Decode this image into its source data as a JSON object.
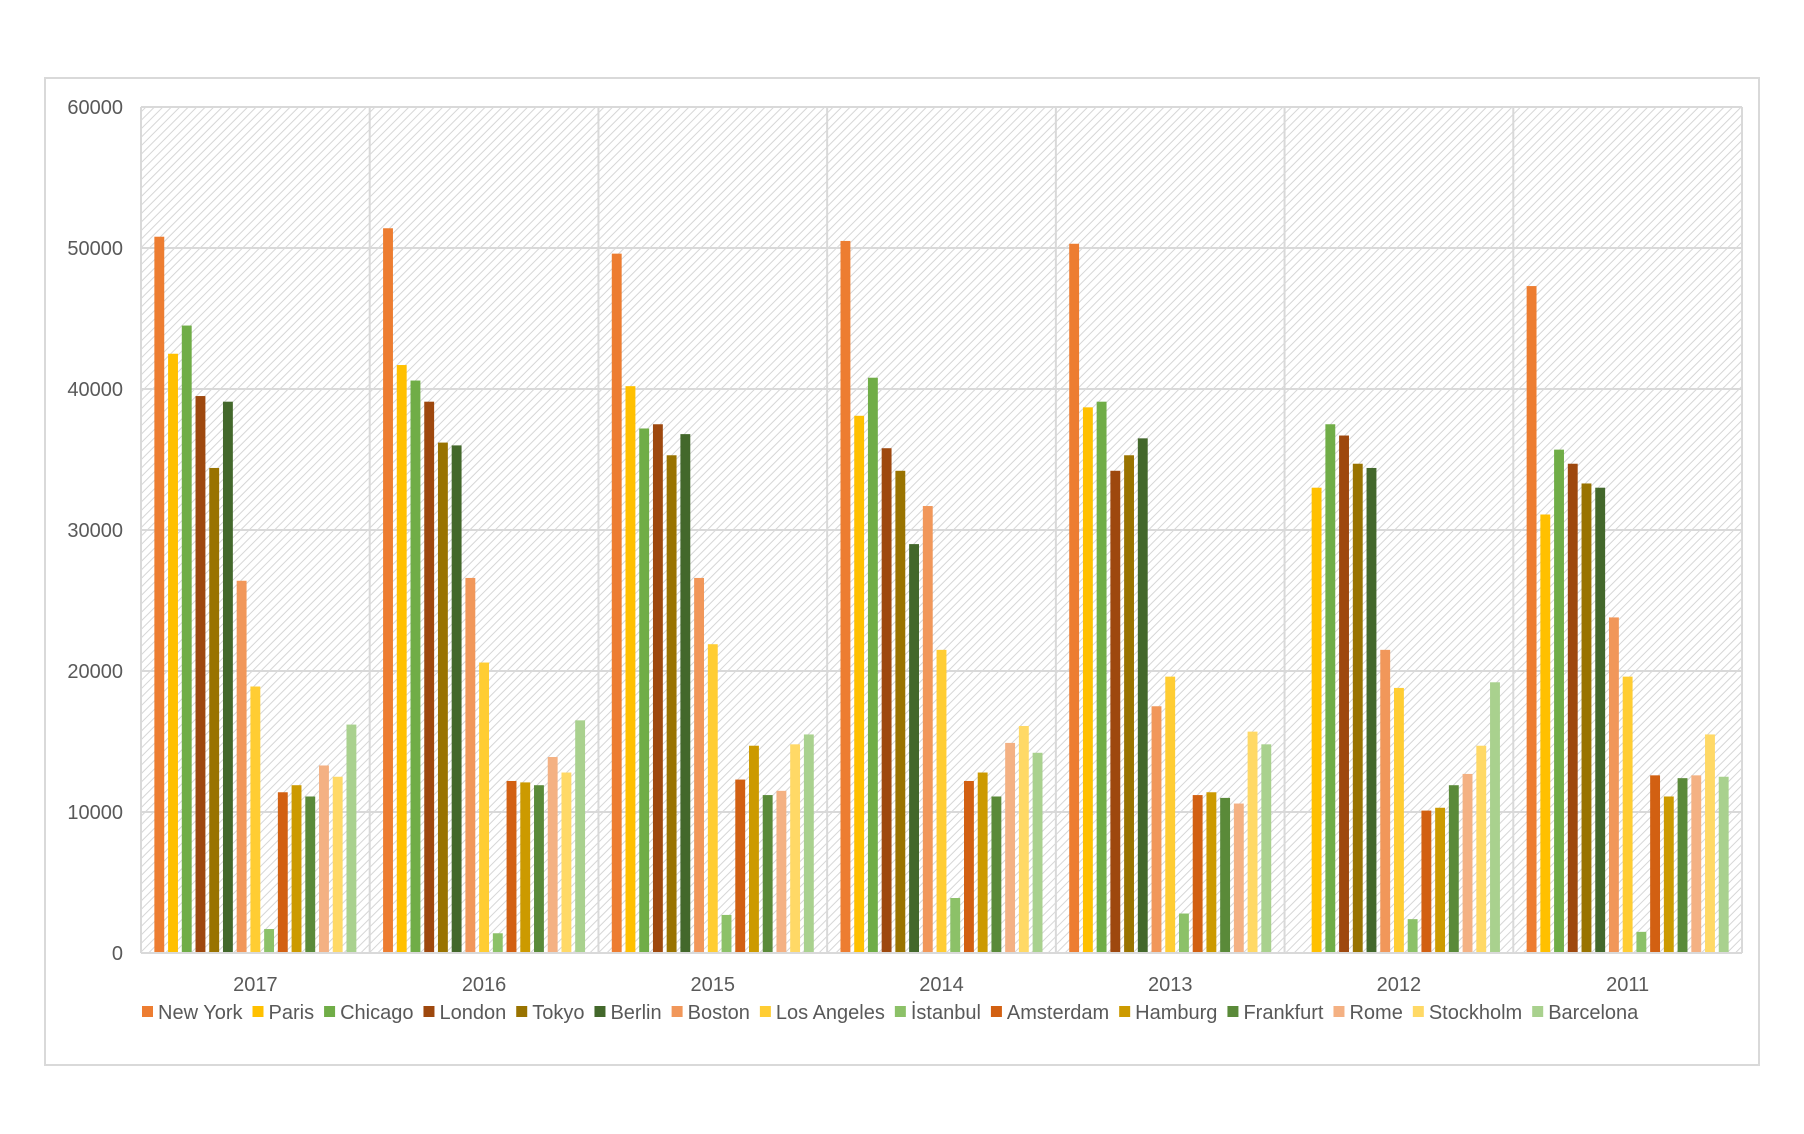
{
  "chart_data": {
    "type": "bar",
    "title": "",
    "xlabel": "",
    "ylabel": "",
    "ylim": [
      0,
      60000
    ],
    "yticks": [
      0,
      10000,
      20000,
      30000,
      40000,
      50000,
      60000
    ],
    "grid": true,
    "legend_position": "bottom",
    "categories": [
      "2017",
      "2016",
      "2015",
      "2014",
      "2013",
      "2012",
      "2011"
    ],
    "series": [
      {
        "name": "New York",
        "color": "#ed7d31",
        "values": [
          50800,
          51400,
          49600,
          50500,
          50300,
          0,
          47300
        ]
      },
      {
        "name": "Paris",
        "color": "#ffc000",
        "values": [
          42500,
          41700,
          40200,
          38100,
          38700,
          33000,
          31100
        ]
      },
      {
        "name": "Chicago",
        "color": "#70ad47",
        "values": [
          44500,
          40600,
          37200,
          40800,
          39100,
          37500,
          35700
        ]
      },
      {
        "name": "London",
        "color": "#9e480e",
        "values": [
          39500,
          39100,
          37500,
          35800,
          34200,
          36700,
          34700
        ]
      },
      {
        "name": "Tokyo",
        "color": "#997300",
        "values": [
          34400,
          36200,
          35300,
          34200,
          35300,
          34700,
          33300
        ]
      },
      {
        "name": "Berlin",
        "color": "#43682b",
        "values": [
          39100,
          36000,
          36800,
          29000,
          36500,
          34400,
          33000
        ]
      },
      {
        "name": "Boston",
        "color": "#f1975a",
        "values": [
          26400,
          26600,
          26600,
          31700,
          17500,
          21500,
          23800
        ]
      },
      {
        "name": "Los Angeles",
        "color": "#ffcd33",
        "values": [
          18900,
          20600,
          21900,
          21500,
          19600,
          18800,
          19600
        ]
      },
      {
        "name": "İstanbul",
        "color": "#8cc168",
        "values": [
          1700,
          1400,
          2700,
          3900,
          2800,
          2400,
          1500
        ]
      },
      {
        "name": "Amsterdam",
        "color": "#d26012",
        "values": [
          11400,
          12200,
          12300,
          12200,
          11200,
          10100,
          12600
        ]
      },
      {
        "name": "Hamburg",
        "color": "#cc9a00",
        "values": [
          11900,
          12100,
          14700,
          12800,
          11400,
          10300,
          11100
        ]
      },
      {
        "name": "Frankfurt",
        "color": "#5a8a39",
        "values": [
          11100,
          11900,
          11200,
          11100,
          11000,
          11900,
          12400
        ]
      },
      {
        "name": "Rome",
        "color": "#f4b183",
        "values": [
          13300,
          13900,
          11500,
          14900,
          10600,
          12700,
          12600
        ]
      },
      {
        "name": "Stockholm",
        "color": "#ffd966",
        "values": [
          12500,
          12800,
          14800,
          16100,
          15700,
          14700,
          15500
        ]
      },
      {
        "name": "Barcelona",
        "color": "#a9d18e",
        "values": [
          16200,
          16500,
          15500,
          14200,
          14800,
          19200,
          12500
        ]
      }
    ]
  }
}
